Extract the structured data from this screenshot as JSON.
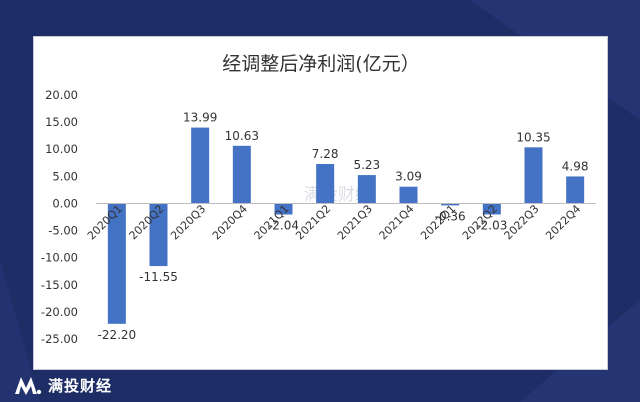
{
  "brand": {
    "name": "满投财经",
    "watermark": "满投财经"
  },
  "colors": {
    "background": "#1f2d66",
    "bar": "#4472c4",
    "text": "#333333",
    "axis": "#bfbfbf"
  },
  "chart_data": {
    "type": "bar",
    "title": "经调整后净利润(亿元）",
    "xlabel": "",
    "ylabel": "",
    "categories": [
      "2020Q1",
      "2020Q2",
      "2020Q3",
      "2020Q4",
      "2021Q1",
      "2021Q2",
      "2021Q3",
      "2021Q4",
      "2022Q1",
      "2022Q2",
      "2022Q3",
      "2022Q4"
    ],
    "values": [
      -22.2,
      -11.55,
      13.99,
      10.63,
      -2.04,
      7.28,
      5.23,
      3.09,
      -0.36,
      -2.03,
      10.35,
      4.98
    ],
    "value_labels": [
      "-22.20",
      "-11.55",
      "13.99",
      "10.63",
      "-2.04",
      "7.28",
      "5.23",
      "3.09",
      "-0.36",
      "-2.03",
      "10.35",
      "4.98"
    ],
    "ylim": [
      -25,
      20
    ],
    "yticks": [
      "20.00",
      "15.00",
      "10.00",
      "5.00",
      "0.00",
      "-5.00",
      "-10.00",
      "-15.00",
      "-20.00",
      "-25.00"
    ],
    "grid": false,
    "legend": "none"
  }
}
